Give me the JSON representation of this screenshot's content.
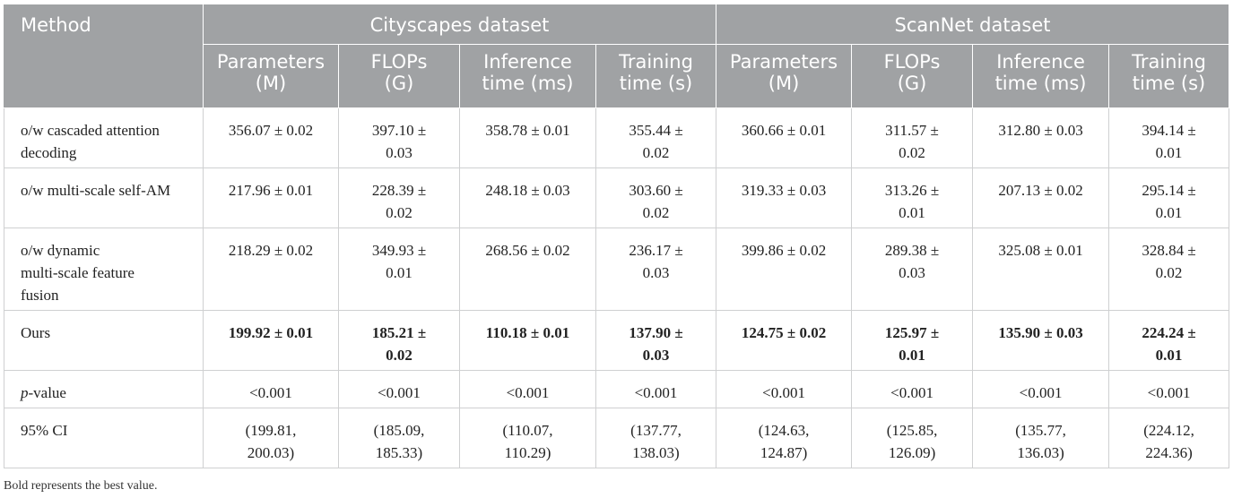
{
  "table": {
    "method_header": "Method",
    "group_headers": [
      "Cityscapes dataset",
      "ScanNet dataset"
    ],
    "sub_headers": [
      [
        "Parameters",
        "(M)"
      ],
      [
        "FLOPs",
        "(G)"
      ],
      [
        "Inference",
        "time (ms)"
      ],
      [
        "Training",
        "time (s)"
      ],
      [
        "Parameters",
        "(M)"
      ],
      [
        "FLOPs",
        "(G)"
      ],
      [
        "Inference",
        "time (ms)"
      ],
      [
        "Training",
        "time (s)"
      ]
    ],
    "rows": [
      {
        "method": [
          "o/w cascaded attention",
          "decoding"
        ],
        "values": [
          [
            "356.07 ± 0.02"
          ],
          [
            "397.10 ±",
            "0.03"
          ],
          [
            "358.78 ± 0.01"
          ],
          [
            "355.44 ±",
            "0.02"
          ],
          [
            "360.66 ± 0.01"
          ],
          [
            "311.57 ±",
            "0.02"
          ],
          [
            "312.80 ± 0.03"
          ],
          [
            "394.14 ±",
            "0.01"
          ]
        ]
      },
      {
        "method": [
          "o/w multi-scale self-AM"
        ],
        "values": [
          [
            "217.96 ± 0.01"
          ],
          [
            "228.39 ±",
            "0.02"
          ],
          [
            "248.18 ± 0.03"
          ],
          [
            "303.60 ±",
            "0.02"
          ],
          [
            "319.33 ± 0.03"
          ],
          [
            "313.26 ±",
            "0.01"
          ],
          [
            "207.13 ± 0.02"
          ],
          [
            "295.14 ±",
            "0.01"
          ]
        ]
      },
      {
        "method": [
          "o/w dynamic",
          "multi-scale feature",
          "fusion"
        ],
        "values": [
          [
            "218.29 ± 0.02"
          ],
          [
            "349.93 ±",
            "0.01"
          ],
          [
            "268.56 ± 0.02"
          ],
          [
            "236.17 ±",
            "0.03"
          ],
          [
            "399.86 ± 0.02"
          ],
          [
            "289.38 ±",
            "0.03"
          ],
          [
            "325.08 ± 0.01"
          ],
          [
            "328.84 ±",
            "0.02"
          ]
        ]
      },
      {
        "method": [
          "Ours"
        ],
        "bold": true,
        "values": [
          [
            "199.92 ± 0.01"
          ],
          [
            "185.21 ±",
            "0.02"
          ],
          [
            "110.18 ± 0.01"
          ],
          [
            "137.90 ±",
            "0.03"
          ],
          [
            "124.75 ± 0.02"
          ],
          [
            "125.97 ±",
            "0.01"
          ],
          [
            "135.90 ± 0.03"
          ],
          [
            "224.24 ±",
            "0.01"
          ]
        ]
      },
      {
        "method_italic": "p",
        "method_rest": "-value",
        "values": [
          [
            "<0.001"
          ],
          [
            "<0.001"
          ],
          [
            "<0.001"
          ],
          [
            "<0.001"
          ],
          [
            "<0.001"
          ],
          [
            "<0.001"
          ],
          [
            "<0.001"
          ],
          [
            "<0.001"
          ]
        ]
      },
      {
        "method": [
          "95% CI"
        ],
        "values": [
          [
            "(199.81,",
            "200.03)"
          ],
          [
            "(185.09,",
            "185.33)"
          ],
          [
            "(110.07,",
            "110.29)"
          ],
          [
            "(137.77,",
            "138.03)"
          ],
          [
            "(124.63,",
            "124.87)"
          ],
          [
            "(125.85,",
            "126.09)"
          ],
          [
            "(135.77,",
            "136.03)"
          ],
          [
            "(224.12,",
            "224.36)"
          ]
        ]
      }
    ]
  },
  "footnote": "Bold represents the best value."
}
